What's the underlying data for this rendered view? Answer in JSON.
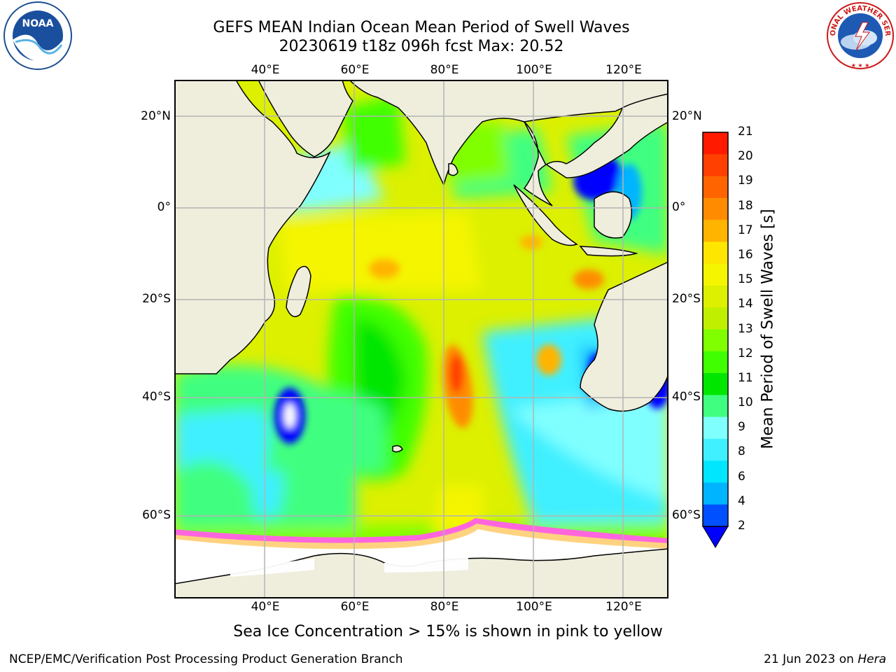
{
  "title": {
    "line1": "GEFS MEAN Indian Ocean Mean Period of Swell Waves",
    "line2": "20230619 t18z 096h fcst   Max: 20.52"
  },
  "map": {
    "lon_labels": [
      "40°E",
      "60°E",
      "80°E",
      "100°E",
      "120°E"
    ],
    "lat_labels": [
      "20°N",
      "0°",
      "20°S",
      "40°S",
      "60°S"
    ]
  },
  "colorbar": {
    "label": "Mean Period of Swell Waves [s]",
    "ticks": [
      "21",
      "20",
      "19",
      "18",
      "17",
      "16",
      "15",
      "14",
      "13",
      "12",
      "11",
      "10",
      "9",
      "8",
      "6",
      "4",
      "2"
    ],
    "colors": [
      "#ff1a00",
      "#ff4000",
      "#ff6400",
      "#ff8c00",
      "#ffb400",
      "#ffe600",
      "#f5f500",
      "#dcf000",
      "#c0f000",
      "#80ff00",
      "#40ff00",
      "#00e600",
      "#40ff80",
      "#80ffff",
      "#40f0ff",
      "#00e6ff",
      "#00b4ff",
      "#0050ff"
    ],
    "extend_color": "#0000ff"
  },
  "notes": {
    "sea_ice": "Sea Ice Concentration > 15% is shown in pink to yellow"
  },
  "footer": {
    "left": "NCEP/EMC/Verification Post Processing Product Generation Branch",
    "date": "21 Jun 2023 on ",
    "machine": "Hera"
  },
  "logos": {
    "noaa_text": "NOAA",
    "nws_text": "NATIONAL WEATHER SERVICE"
  },
  "colors": {
    "land": "#efeddc",
    "grid": "#b4b4b4",
    "ice_pink": "#ff66dd",
    "ice_yellow": "#ffd27f"
  }
}
